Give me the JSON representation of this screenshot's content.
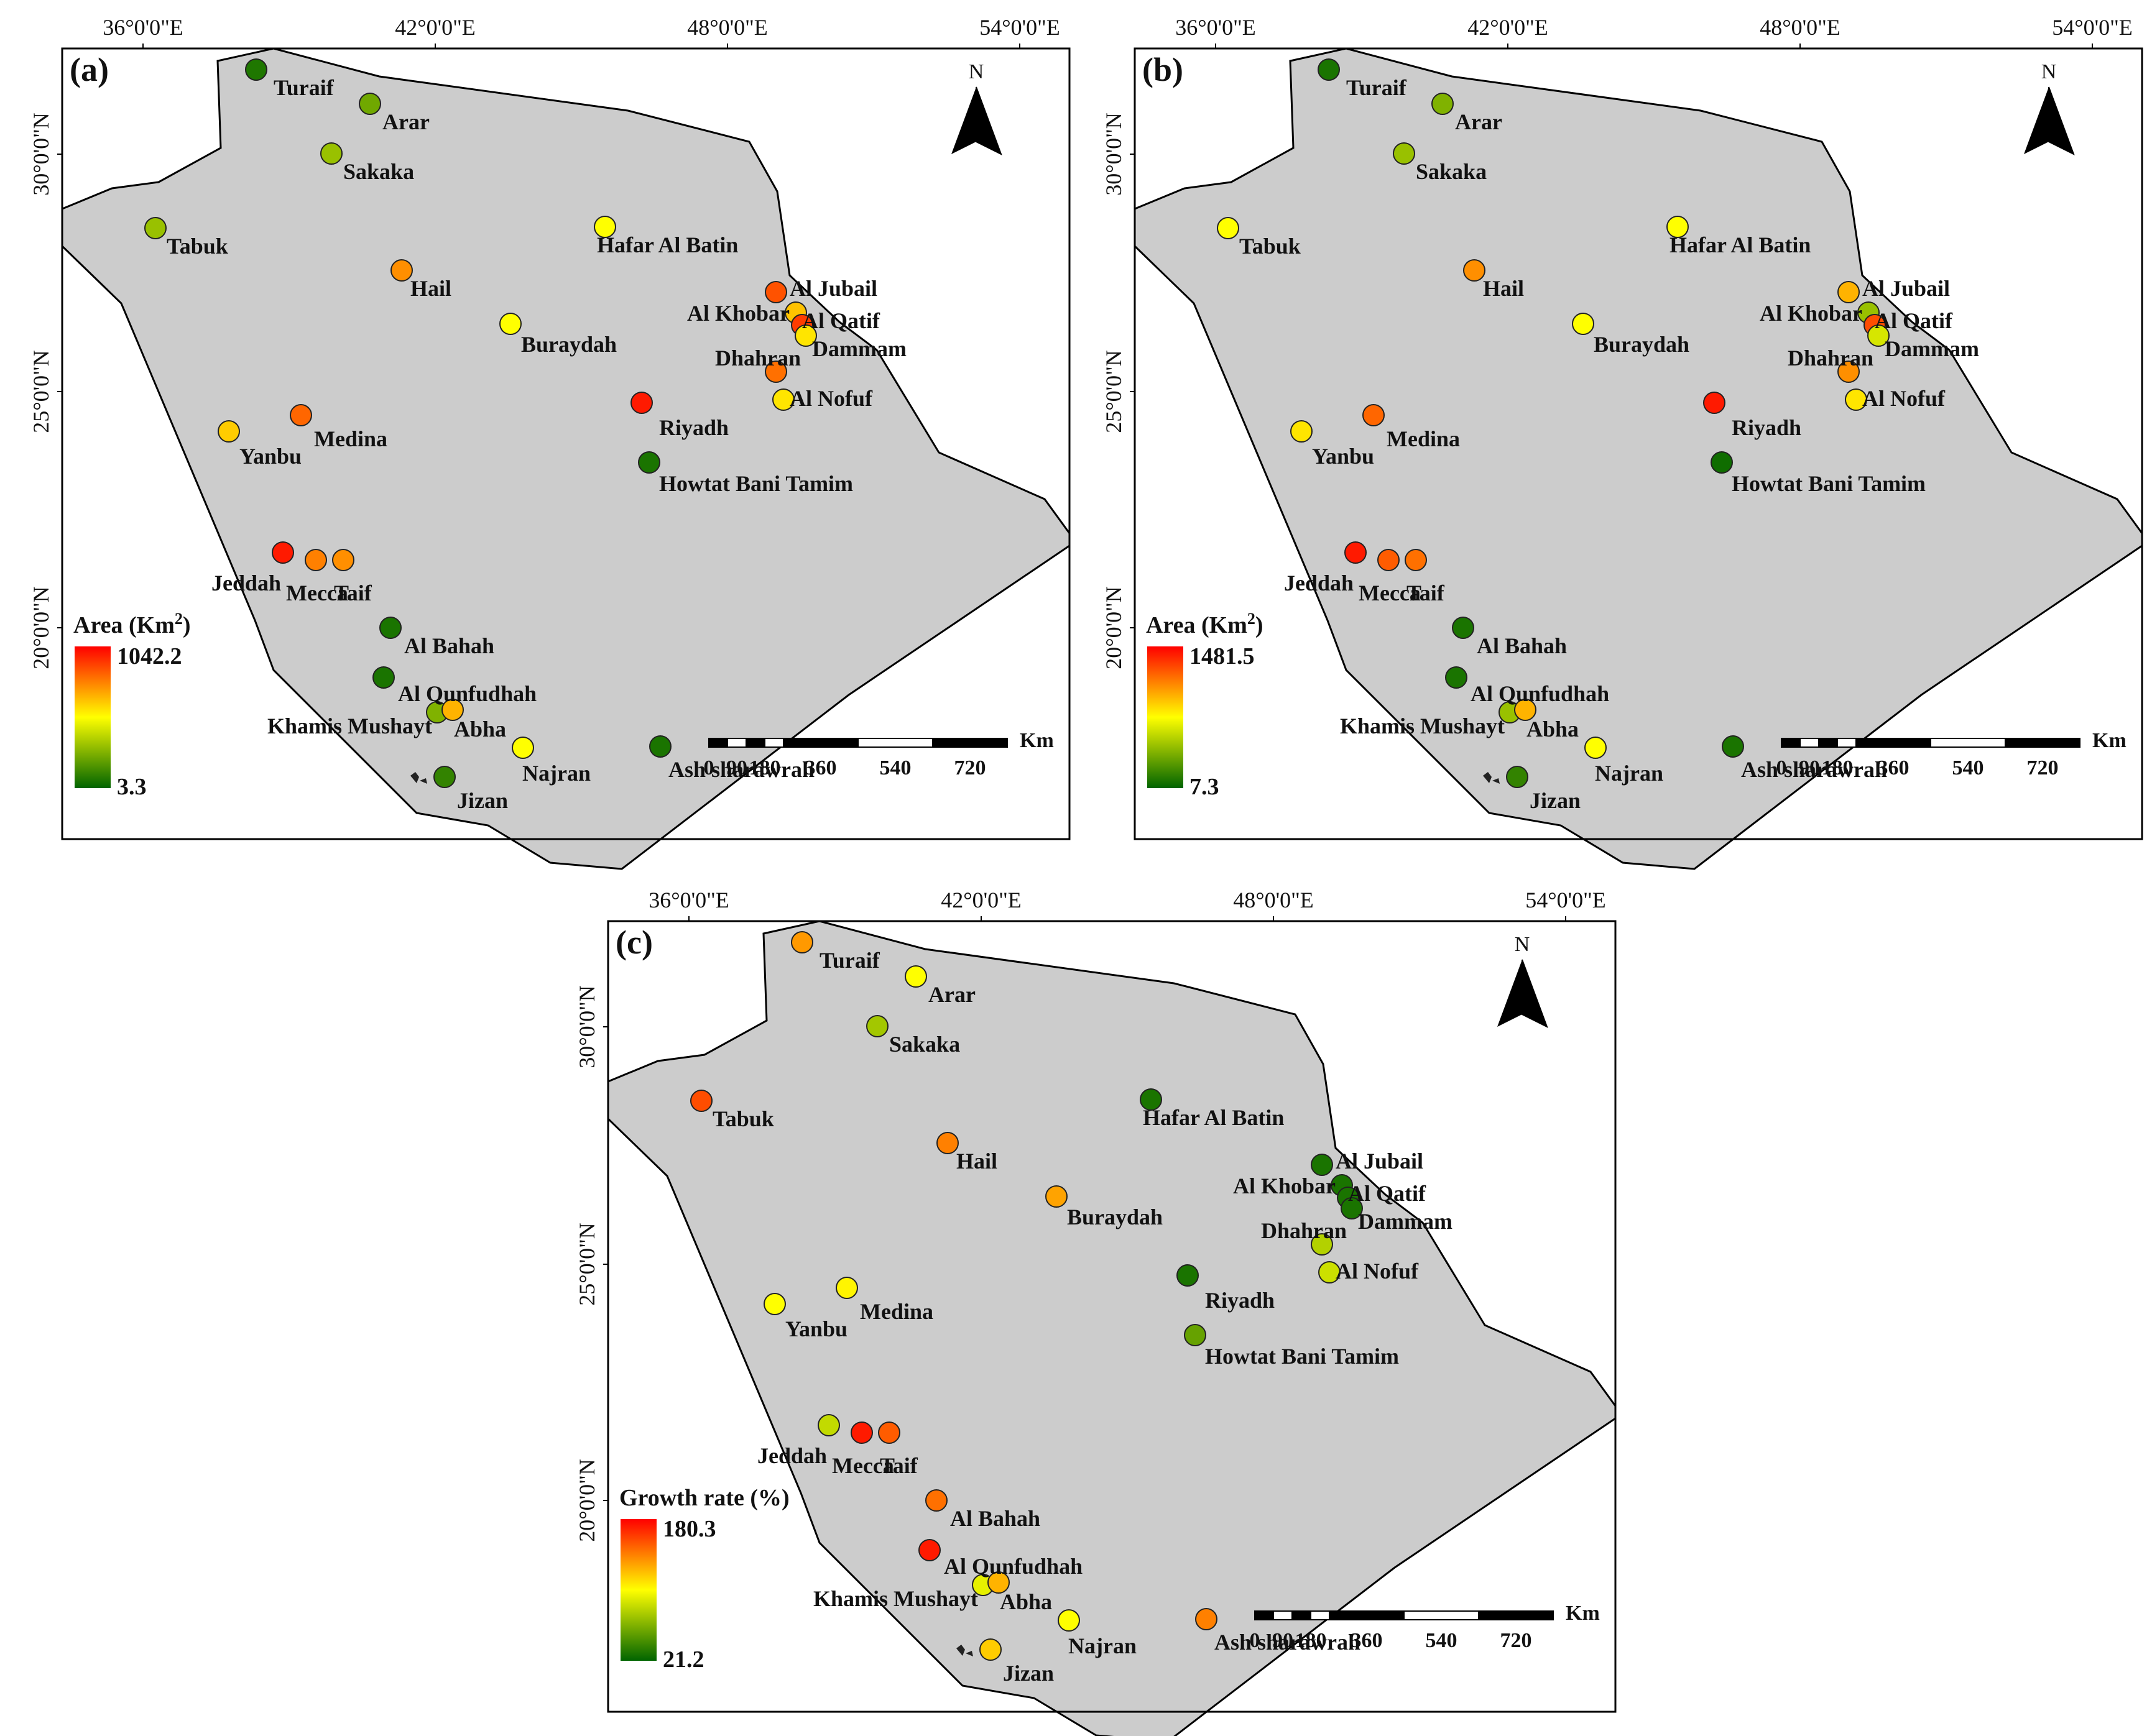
{
  "figure": {
    "panels": [
      {
        "id": "a",
        "panel_label": "(a)",
        "legend_title": "Area (Km²)",
        "legend_title_main": "Area (Km",
        "legend_title_sup": "2",
        "legend_title_end": ")",
        "legend_max": "1042.2",
        "legend_min": "3.3",
        "city_values": {
          "Turaif": 0.06,
          "Arar": 0.22,
          "Sakaka": 0.3,
          "Tabuk": 0.3,
          "Hafar Al Batin": 0.5,
          "Hail": 0.72,
          "Al Jubail": 0.84,
          "Buraydah": 0.5,
          "Al Khobar": 0.62,
          "Al Qatif": 0.88,
          "Dammam": 0.55,
          "Dhahran": 0.78,
          "Al Nofuf": 0.55,
          "Riyadh": 0.95,
          "Medina": 0.8,
          "Yanbu": 0.6,
          "Howtat Bani Tamim": 0.05,
          "Jeddah": 0.95,
          "Mecca": 0.75,
          "Taif": 0.72,
          "Al Bahah": 0.05,
          "Al Qunfudhah": 0.05,
          "Khamis Mushayt": 0.25,
          "Abha": 0.65,
          "Najran": 0.5,
          "Ash sharawrah": 0.05,
          "Jizan": 0.1
        }
      },
      {
        "id": "b",
        "panel_label": "(b)",
        "legend_title": "Area (Km²)",
        "legend_title_main": "Area (Km",
        "legend_title_sup": "2",
        "legend_title_end": ")",
        "legend_max": "1481.5",
        "legend_min": "7.3",
        "city_values": {
          "Turaif": 0.05,
          "Arar": 0.25,
          "Sakaka": 0.3,
          "Tabuk": 0.5,
          "Hafar Al Batin": 0.5,
          "Hail": 0.72,
          "Al Jubail": 0.65,
          "Buraydah": 0.5,
          "Al Khobar": 0.3,
          "Al Qatif": 0.85,
          "Dammam": 0.42,
          "Dhahran": 0.72,
          "Al Nofuf": 0.55,
          "Riyadh": 0.95,
          "Medina": 0.8,
          "Yanbu": 0.55,
          "Howtat Bani Tamim": 0.03,
          "Jeddah": 0.95,
          "Mecca": 0.82,
          "Taif": 0.78,
          "Al Bahah": 0.05,
          "Al Qunfudhah": 0.05,
          "Khamis Mushayt": 0.3,
          "Abha": 0.65,
          "Najran": 0.5,
          "Ash sharawrah": 0.05,
          "Jizan": 0.1
        }
      },
      {
        "id": "c",
        "panel_label": "(c)",
        "legend_title": "Growth rate (%)",
        "legend_title_main": "Growth rate (%)",
        "legend_title_sup": "",
        "legend_title_end": "",
        "legend_max": "180.3",
        "legend_min": "21.2",
        "city_values": {
          "Turaif": 0.7,
          "Arar": 0.5,
          "Sakaka": 0.32,
          "Tabuk": 0.85,
          "Hafar Al Batin": 0.05,
          "Hail": 0.75,
          "Al Jubail": 0.05,
          "Buraydah": 0.68,
          "Al Khobar": 0.05,
          "Al Qatif": 0.05,
          "Dammam": 0.05,
          "Dhahran": 0.35,
          "Al Nofuf": 0.4,
          "Riyadh": 0.05,
          "Medina": 0.52,
          "Yanbu": 0.5,
          "Howtat Bani Tamim": 0.2,
          "Jeddah": 0.38,
          "Mecca": 0.95,
          "Taif": 0.82,
          "Al Bahah": 0.78,
          "Al Qunfudhah": 0.95,
          "Khamis Mushayt": 0.45,
          "Abha": 0.65,
          "Najran": 0.5,
          "Ash sharawrah": 0.75,
          "Jizan": 0.6
        }
      }
    ],
    "longitude_ticks": [
      "36°0'0\"E",
      "42°0'0\"E",
      "48°0'0\"E",
      "54°0'0\"E"
    ],
    "latitude_ticks": [
      "30°0'0\"N",
      "25°0'0\"N",
      "20°0'0\"N"
    ],
    "north_arrow_label": "N",
    "scale_unit": "Km",
    "scale_ticks": [
      "0",
      "90",
      "180",
      "360",
      "540",
      "720"
    ],
    "colors": {
      "land": "#cccccc",
      "low": "#006400",
      "mid": "#ffff00",
      "high": "#ff0000",
      "outline": "#000000"
    },
    "cities": [
      {
        "name": "Turaif",
        "label": "Turaif"
      },
      {
        "name": "Arar",
        "label": "Arar"
      },
      {
        "name": "Sakaka",
        "label": "Sakaka"
      },
      {
        "name": "Tabuk",
        "label": "Tabuk"
      },
      {
        "name": "Hafar Al Batin",
        "label": "Hafar Al Batin"
      },
      {
        "name": "Hail",
        "label": "Hail"
      },
      {
        "name": "Al Jubail",
        "label": "Al Jubail"
      },
      {
        "name": "Buraydah",
        "label": "Buraydah"
      },
      {
        "name": "Al Khobar",
        "label": "Al Khobar"
      },
      {
        "name": "Al Qatif",
        "label": "Al Qatif"
      },
      {
        "name": "Dammam",
        "label": "Dammam"
      },
      {
        "name": "Dhahran",
        "label": "Dhahran"
      },
      {
        "name": "Al Nofuf",
        "label": "Al Nofuf"
      },
      {
        "name": "Riyadh",
        "label": "Riyadh"
      },
      {
        "name": "Medina",
        "label": "Medina"
      },
      {
        "name": "Yanbu",
        "label": "Yanbu"
      },
      {
        "name": "Howtat Bani Tamim",
        "label": "Howtat Bani Tamim"
      },
      {
        "name": "Jeddah",
        "label": "Jeddah"
      },
      {
        "name": "Mecca",
        "label": "Mecca"
      },
      {
        "name": "Taif",
        "label": "Taif"
      },
      {
        "name": "Al Bahah",
        "label": "Al Bahah"
      },
      {
        "name": "Al Qunfudhah",
        "label": "Al Qunfudhah"
      },
      {
        "name": "Khamis Mushayt",
        "label": "Khamis Mushayt"
      },
      {
        "name": "Abha",
        "label": "Abha"
      },
      {
        "name": "Najran",
        "label": "Najran"
      },
      {
        "name": "Ash sharawrah",
        "label": "Ash sharawrah"
      },
      {
        "name": "Jizan",
        "label": "Jizan"
      }
    ]
  }
}
